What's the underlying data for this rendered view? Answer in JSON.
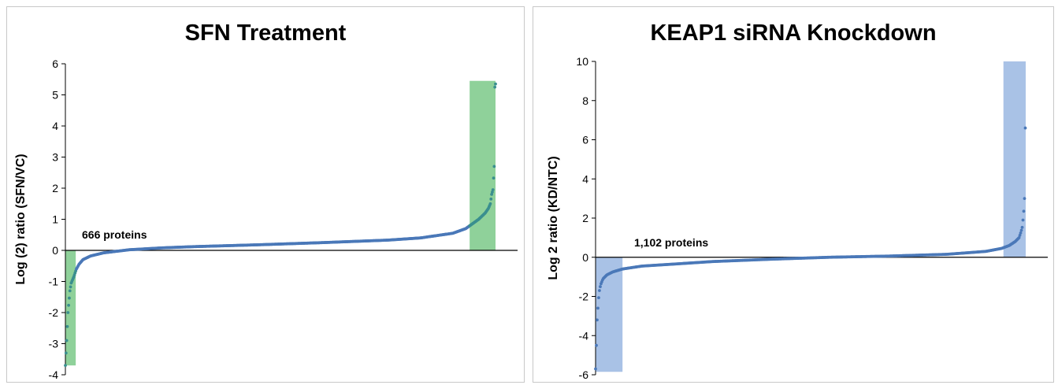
{
  "chart_data": [
    {
      "type": "scatter",
      "title": "SFN Treatment",
      "xlabel": "",
      "ylabel": "Log (2) ratio (SFN/VC)",
      "ylim": [
        -4,
        6
      ],
      "yticks": [
        "6",
        "5",
        "4",
        "3",
        "2",
        "1",
        "0",
        "-1",
        "-2",
        "-3",
        "-4"
      ],
      "annotation": "666 proteins",
      "n": 666,
      "highlight_color": "#8fd19a",
      "point_color": "#4a78b8",
      "highlight_point_color": "#3a8f8f",
      "highlights": [
        {
          "x": [
            1,
            17
          ],
          "y": [
            -3.7,
            0
          ]
        },
        {
          "x": [
            626,
            666
          ],
          "y": [
            0,
            5.45
          ]
        }
      ],
      "series": [
        {
          "x": [
            1,
            3,
            5,
            8,
            10,
            14,
            18,
            22,
            28,
            40,
            60,
            100,
            150,
            200,
            300,
            400,
            500,
            550,
            600,
            620,
            630,
            640,
            645,
            650,
            655,
            658,
            660,
            662,
            664,
            665,
            666
          ],
          "values": [
            -3.7,
            -2.9,
            -2.0,
            -1.3,
            -1.05,
            -0.85,
            -0.6,
            -0.45,
            -0.3,
            -0.18,
            -0.08,
            0.02,
            0.08,
            0.12,
            0.18,
            0.25,
            0.33,
            0.4,
            0.55,
            0.7,
            0.85,
            1.0,
            1.1,
            1.2,
            1.35,
            1.5,
            1.8,
            1.95,
            2.7,
            5.25,
            5.35
          ]
        }
      ]
    },
    {
      "type": "scatter",
      "title": "KEAP1 siRNA Knockdown",
      "xlabel": "",
      "ylabel": "Log 2 ratio (KD/NTC)",
      "ylim": [
        -6,
        10
      ],
      "yticks": [
        "10",
        "8",
        "6",
        "4",
        "2",
        "0",
        "-2",
        "-4",
        "-6"
      ],
      "annotation": "1,102 proteins",
      "n": 1102,
      "highlight_color": "#a9c2e6",
      "point_color": "#4a78b8",
      "highlight_point_color": "#4a78b8",
      "highlights": [
        {
          "x": [
            1,
            70
          ],
          "y": [
            -5.85,
            0
          ]
        },
        {
          "x": [
            1045,
            1102
          ],
          "y": [
            0,
            10
          ]
        }
      ],
      "series": [
        {
          "x": [
            1,
            2,
            3,
            5,
            7,
            10,
            14,
            20,
            30,
            45,
            70,
            120,
            200,
            300,
            450,
            600,
            750,
            900,
            1000,
            1040,
            1060,
            1075,
            1085,
            1090,
            1094,
            1096,
            1098,
            1100,
            1101,
            1102
          ],
          "values": [
            -5.7,
            -5.2,
            -4.5,
            -3.2,
            -2.6,
            -1.8,
            -1.4,
            -1.1,
            -0.9,
            -0.75,
            -0.6,
            -0.45,
            -0.35,
            -0.22,
            -0.1,
            0.0,
            0.06,
            0.15,
            0.3,
            0.45,
            0.6,
            0.8,
            1.0,
            1.3,
            1.6,
            2.2,
            2.5,
            3.5,
            6.6,
            9.9
          ]
        }
      ]
    }
  ]
}
